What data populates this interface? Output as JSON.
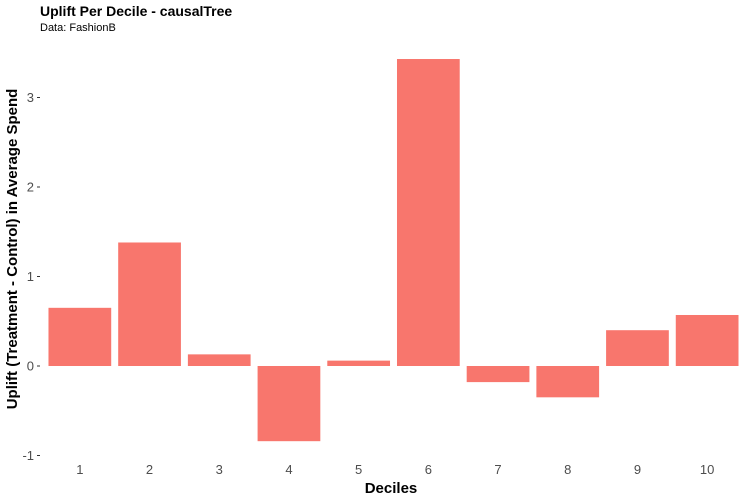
{
  "chart_data": {
    "type": "bar",
    "title": "Uplift Per Decile - causalTree",
    "subtitle": "Data: FashionB",
    "xlabel": "Deciles",
    "ylabel": "Uplift (Treatment - Control) in Average Spend",
    "categories": [
      "1",
      "2",
      "3",
      "4",
      "5",
      "6",
      "7",
      "8",
      "9",
      "10"
    ],
    "values": [
      0.65,
      1.38,
      0.13,
      -0.84,
      0.06,
      3.43,
      -0.18,
      -0.35,
      0.4,
      0.57
    ],
    "ylim": [
      -1,
      3.5
    ],
    "yticks": [
      -1,
      0,
      1,
      2,
      3
    ],
    "bar_color": "#F8766D",
    "grid": false,
    "legend": "none"
  }
}
